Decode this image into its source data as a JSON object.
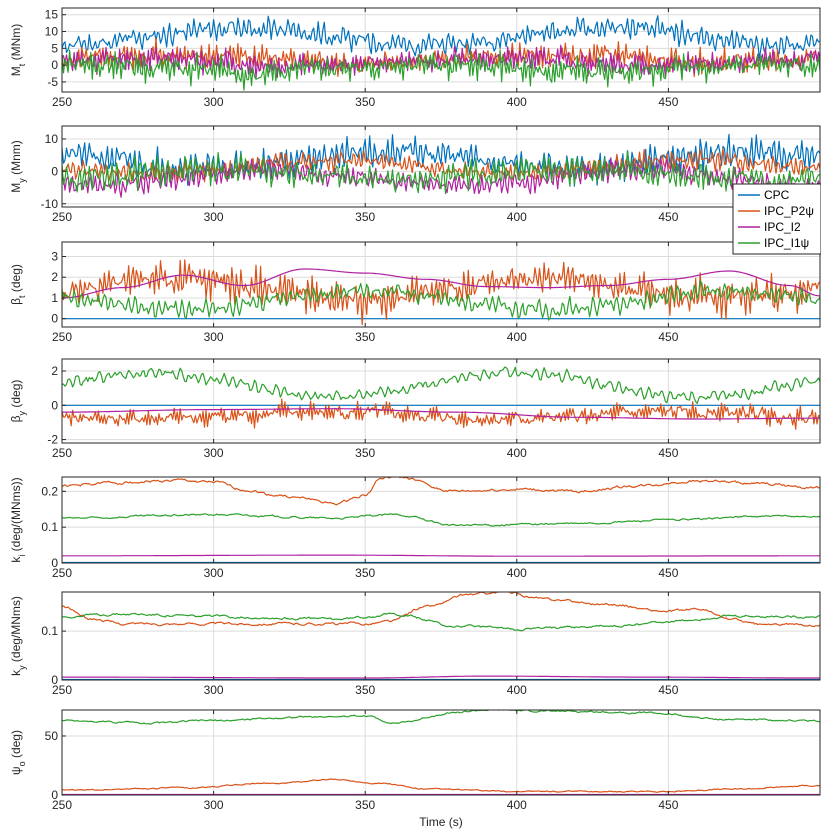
{
  "colors": {
    "CPC": "#0072BD",
    "IPC_P2": "#D95319",
    "IPC_I2": "#B020A0",
    "IPC_I1": "#2CA02C",
    "grid": "#dcdcdc",
    "axis": "#262626"
  },
  "chart_data": {
    "type": "line",
    "xlabel": "Time (s)",
    "xlim": [
      250,
      500
    ],
    "xticks": [
      250,
      300,
      350,
      400,
      450
    ],
    "grid": true,
    "legend": {
      "placement": "right, overlapping panels 2-3",
      "entries": [
        "CPC",
        "IPC_P2ψ",
        "IPC_I2",
        "IPC_I1ψ"
      ],
      "visible_text": [
        "CPC",
        "IPC_P2ψ",
        "IPC_I2",
        "IPC_I1ψ"
      ]
    },
    "panels": [
      {
        "id": "mt",
        "ylabel": "M_t (MNm)",
        "ylim": [
          -8,
          17
        ],
        "yticks": [
          -5,
          0,
          5,
          10,
          15
        ],
        "series": [
          {
            "name": "CPC",
            "mean": 8.5,
            "amp": 3.2,
            "slow": 2.5,
            "freq": 0.55,
            "noise": 1.4,
            "seed": 11
          },
          {
            "name": "IPC_P2ψ",
            "mean": 2.0,
            "amp": 3.5,
            "slow": 1.2,
            "freq": 0.8,
            "noise": 1.4,
            "seed": 12
          },
          {
            "name": "IPC_I2",
            "mean": 1.0,
            "amp": 3.5,
            "slow": 1.0,
            "freq": 0.8,
            "noise": 1.3,
            "seed": 13
          },
          {
            "name": "IPC_I1ψ",
            "mean": -1.0,
            "amp": 4.0,
            "slow": 1.0,
            "freq": 0.8,
            "noise": 1.5,
            "seed": 14
          }
        ]
      },
      {
        "id": "my",
        "ylabel": "M_y (Mnm)",
        "ylim": [
          -11,
          14
        ],
        "yticks": [
          -10,
          0,
          10
        ],
        "series": [
          {
            "name": "CPC",
            "mean": 3.5,
            "amp": 5.0,
            "slow": 2.5,
            "freq": 0.6,
            "noise": 1.5,
            "seed": 21
          },
          {
            "name": "IPC_P2ψ",
            "mean": 1.5,
            "amp": 3.0,
            "slow": 2.0,
            "freq": 0.6,
            "noise": 1.0,
            "seed": 22
          },
          {
            "name": "IPC_I2",
            "mean": -2.0,
            "amp": 3.5,
            "slow": 2.5,
            "freq": 0.6,
            "noise": 1.2,
            "seed": 23
          },
          {
            "name": "IPC_I1ψ",
            "mean": -1.0,
            "amp": 4.5,
            "slow": 1.5,
            "freq": 0.6,
            "noise": 1.5,
            "seed": 24
          }
        ]
      },
      {
        "id": "bt",
        "ylabel": "β_t (deg)",
        "ylim": [
          -0.4,
          3.7
        ],
        "yticks": [
          0,
          1,
          2,
          3
        ],
        "series": [
          {
            "name": "CPC",
            "constant": 0
          },
          {
            "name": "IPC_P2ψ",
            "mean": 1.45,
            "amp": 0.9,
            "slow": 0.5,
            "freq": 0.7,
            "noise": 0.25,
            "seed": 31
          },
          {
            "name": "IPC_I2",
            "smooth": [
              [
                250,
                1.0
              ],
              [
                270,
                1.5
              ],
              [
                290,
                2.1
              ],
              [
                310,
                1.6
              ],
              [
                330,
                2.4
              ],
              [
                350,
                2.2
              ],
              [
                370,
                1.9
              ],
              [
                390,
                1.55
              ],
              [
                410,
                1.5
              ],
              [
                430,
                1.6
              ],
              [
                450,
                1.9
              ],
              [
                470,
                2.3
              ],
              [
                490,
                1.6
              ],
              [
                500,
                1.1
              ]
            ]
          },
          {
            "name": "IPC_I1ψ",
            "mean": 0.9,
            "amp": 0.45,
            "slow": 0.45,
            "freq": 0.45,
            "noise": 0.15,
            "seed": 34
          }
        ]
      },
      {
        "id": "by",
        "ylabel": "β_y (deg)",
        "ylim": [
          -2.2,
          2.7
        ],
        "yticks": [
          -2,
          0,
          2
        ],
        "series": [
          {
            "name": "CPC",
            "constant": 0
          },
          {
            "name": "IPC_P2ψ",
            "mean": -0.6,
            "amp": 0.5,
            "slow": 0.2,
            "freq": 0.9,
            "noise": 0.25,
            "seed": 41
          },
          {
            "name": "IPC_I2",
            "smooth": [
              [
                250,
                -0.4
              ],
              [
                300,
                -0.25
              ],
              [
                340,
                -0.2
              ],
              [
                380,
                -0.4
              ],
              [
                420,
                -0.7
              ],
              [
                460,
                -0.8
              ],
              [
                500,
                -0.75
              ]
            ]
          },
          {
            "name": "IPC_I1ψ",
            "mean": 1.2,
            "amp": 0.35,
            "slow": 0.7,
            "freq": 0.35,
            "noise": 0.15,
            "seed": 44
          }
        ]
      },
      {
        "id": "ki",
        "ylabel": "k_i (deg/(MNms))",
        "ylim": [
          0,
          0.24
        ],
        "yticks": [
          0,
          0.1,
          0.2
        ],
        "series": [
          {
            "name": "CPC",
            "constant": 0.0015
          },
          {
            "name": "IPC_P2ψ",
            "smooth": [
              [
                250,
                0.215
              ],
              [
                270,
                0.225
              ],
              [
                290,
                0.23
              ],
              [
                300,
                0.225
              ],
              [
                310,
                0.205
              ],
              [
                320,
                0.19
              ],
              [
                330,
                0.18
              ],
              [
                340,
                0.165
              ],
              [
                350,
                0.19
              ],
              [
                355,
                0.235
              ],
              [
                360,
                0.24
              ],
              [
                380,
                0.2
              ],
              [
                400,
                0.205
              ],
              [
                420,
                0.2
              ],
              [
                440,
                0.215
              ],
              [
                460,
                0.23
              ],
              [
                480,
                0.22
              ],
              [
                500,
                0.21
              ]
            ],
            "noise": 0.003,
            "seed": 52
          },
          {
            "name": "IPC_I2",
            "smooth": [
              [
                250,
                0.02
              ],
              [
                340,
                0.022
              ],
              [
                400,
                0.019
              ],
              [
                500,
                0.02
              ]
            ]
          },
          {
            "name": "IPC_I1ψ",
            "smooth": [
              [
                250,
                0.125
              ],
              [
                300,
                0.135
              ],
              [
                340,
                0.125
              ],
              [
                360,
                0.135
              ],
              [
                380,
                0.105
              ],
              [
                420,
                0.11
              ],
              [
                450,
                0.12
              ],
              [
                480,
                0.13
              ],
              [
                500,
                0.13
              ]
            ],
            "noise": 0.002,
            "seed": 54
          }
        ]
      },
      {
        "id": "ky",
        "ylabel": "k_y (deg/MNms)",
        "ylim": [
          0,
          0.18
        ],
        "yticks": [
          0,
          0.1
        ],
        "series": [
          {
            "name": "CPC",
            "constant": 0.001
          },
          {
            "name": "IPC_P2ψ",
            "smooth": [
              [
                250,
                0.15
              ],
              [
                260,
                0.125
              ],
              [
                270,
                0.115
              ],
              [
                300,
                0.115
              ],
              [
                350,
                0.115
              ],
              [
                358,
                0.12
              ],
              [
                370,
                0.15
              ],
              [
                385,
                0.175
              ],
              [
                395,
                0.18
              ],
              [
                410,
                0.165
              ],
              [
                430,
                0.155
              ],
              [
                450,
                0.14
              ],
              [
                460,
                0.145
              ],
              [
                470,
                0.125
              ],
              [
                480,
                0.113
              ],
              [
                500,
                0.113
              ]
            ],
            "noise": 0.002,
            "seed": 62
          },
          {
            "name": "IPC_I2",
            "smooth": [
              [
                250,
                0.006
              ],
              [
                350,
                0.004
              ],
              [
                390,
                0.008
              ],
              [
                440,
                0.006
              ],
              [
                500,
                0.004
              ]
            ]
          },
          {
            "name": "IPC_I1ψ",
            "smooth": [
              [
                250,
                0.13
              ],
              [
                270,
                0.135
              ],
              [
                300,
                0.13
              ],
              [
                340,
                0.125
              ],
              [
                360,
                0.135
              ],
              [
                380,
                0.11
              ],
              [
                400,
                0.105
              ],
              [
                430,
                0.11
              ],
              [
                450,
                0.12
              ],
              [
                470,
                0.13
              ],
              [
                500,
                0.13
              ]
            ],
            "noise": 0.002,
            "seed": 64
          }
        ]
      },
      {
        "id": "psi",
        "ylabel": "ψ_o (deg)",
        "ylim": [
          0,
          72
        ],
        "yticks": [
          0,
          50
        ],
        "series": [
          {
            "name": "CPC",
            "constant": 0.2
          },
          {
            "name": "IPC_P2ψ",
            "smooth": [
              [
                250,
                4
              ],
              [
                290,
                6
              ],
              [
                320,
                10
              ],
              [
                340,
                13
              ],
              [
                355,
                10
              ],
              [
                370,
                5
              ],
              [
                400,
                3
              ],
              [
                450,
                3
              ],
              [
                470,
                5
              ],
              [
                500,
                8
              ]
            ],
            "noise": 0.4,
            "seed": 72
          },
          {
            "name": "IPC_I2",
            "constant": 0.4
          },
          {
            "name": "IPC_I1ψ",
            "smooth": [
              [
                250,
                63
              ],
              [
                280,
                61
              ],
              [
                300,
                63
              ],
              [
                330,
                66
              ],
              [
                350,
                67
              ],
              [
                360,
                61
              ],
              [
                380,
                70
              ],
              [
                390,
                72
              ],
              [
                410,
                71
              ],
              [
                440,
                70
              ],
              [
                470,
                64
              ],
              [
                500,
                63
              ]
            ],
            "noise": 0.6,
            "seed": 74
          }
        ]
      }
    ]
  }
}
